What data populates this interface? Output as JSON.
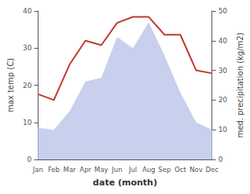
{
  "chart_data": {
    "type": "line",
    "xlabel": "date (month)",
    "ylabel": "max temp (C)",
    "y2label": "med. precipitation (kg/m2)",
    "categories": [
      "Jan",
      "Feb",
      "Mar",
      "Apr",
      "May",
      "Jun",
      "Jul",
      "Aug",
      "Sep",
      "Oct",
      "Nov",
      "Dec"
    ],
    "series": [
      {
        "type": "area",
        "color": "#c8d0ee",
        "values": [
          8.5,
          8.0,
          13.0,
          21.0,
          22.0,
          33.0,
          30.0,
          37.0,
          28.0,
          18.0,
          10.0,
          8.0
        ]
      },
      {
        "type": "line",
        "color": "#c0392b",
        "axis": "y2",
        "values": [
          22.0,
          20.0,
          32.0,
          40.0,
          38.5,
          46.0,
          48.0,
          48.0,
          42.0,
          42.0,
          30.0,
          29.0
        ]
      }
    ],
    "ylim": [
      0,
      40
    ],
    "yticks": [
      0,
      10,
      20,
      30,
      40
    ],
    "y2lim": [
      0,
      50
    ],
    "y2ticks": [
      0,
      10,
      20,
      30,
      40,
      50
    ],
    "grid": false
  }
}
